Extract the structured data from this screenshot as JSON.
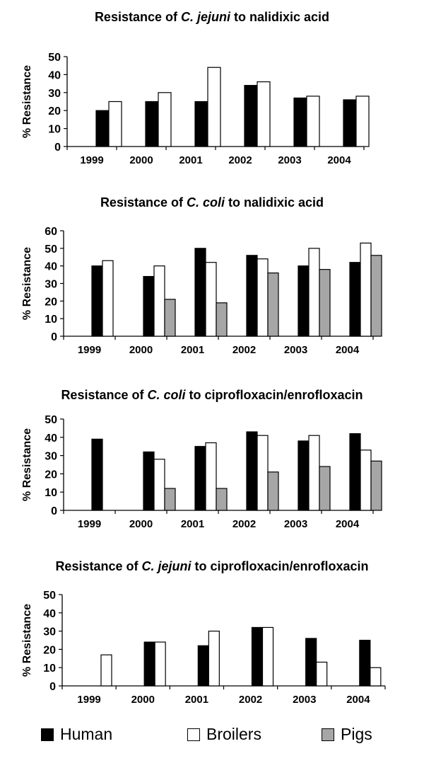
{
  "legend": [
    {
      "label": "Human",
      "color": "#000000"
    },
    {
      "label": "Broilers",
      "color": "#ffffff"
    },
    {
      "label": "Pigs",
      "color": "#a6a6a6"
    }
  ],
  "chart_data": [
    {
      "type": "bar",
      "title_before": "Resistance of ",
      "title_species": "C. jejuni",
      "title_after": " to nalidixic acid",
      "ylabel": "% Resistance",
      "ylim": [
        0,
        50
      ],
      "yticks": [
        0,
        10,
        20,
        30,
        40,
        50
      ],
      "categories": [
        "1999",
        "2000",
        "2001",
        "2002",
        "2003",
        "2004"
      ],
      "series": [
        {
          "name": "Human",
          "values": [
            20,
            25,
            25,
            34,
            27,
            26
          ]
        },
        {
          "name": "Broilers",
          "values": [
            25,
            30,
            44,
            36,
            28,
            28
          ]
        },
        {
          "name": "Pigs",
          "values": [
            null,
            null,
            null,
            null,
            null,
            null
          ]
        }
      ]
    },
    {
      "type": "bar",
      "title_before": "Resistance of ",
      "title_species": "C. coli",
      "title_after": " to nalidixic acid",
      "ylabel": "% Resistance",
      "ylim": [
        0,
        60
      ],
      "yticks": [
        0,
        10,
        20,
        30,
        40,
        50,
        60
      ],
      "categories": [
        "1999",
        "2000",
        "2001",
        "2002",
        "2003",
        "2004"
      ],
      "series": [
        {
          "name": "Human",
          "values": [
            40,
            34,
            50,
            46,
            40,
            42
          ]
        },
        {
          "name": "Broilers",
          "values": [
            43,
            40,
            42,
            44,
            50,
            53
          ]
        },
        {
          "name": "Pigs",
          "values": [
            null,
            21,
            19,
            36,
            38,
            46
          ]
        }
      ]
    },
    {
      "type": "bar",
      "title_before": "Resistance of ",
      "title_species": "C. coli",
      "title_after": " to ciprofloxacin/enrofloxacin",
      "ylabel": "% Resistance",
      "ylim": [
        0,
        50
      ],
      "yticks": [
        0,
        10,
        20,
        30,
        40,
        50
      ],
      "categories": [
        "1999",
        "2000",
        "2001",
        "2002",
        "2003",
        "2004"
      ],
      "series": [
        {
          "name": "Human",
          "values": [
            39,
            32,
            35,
            43,
            38,
            42
          ]
        },
        {
          "name": "Broilers",
          "values": [
            null,
            28,
            37,
            41,
            41,
            33
          ]
        },
        {
          "name": "Pigs",
          "values": [
            null,
            12,
            12,
            21,
            24,
            27
          ]
        }
      ]
    },
    {
      "type": "bar",
      "title_before": "Resistance of ",
      "title_species": "C. jejuni",
      "title_after": " to ciprofloxacin/enrofloxacin",
      "ylabel": "% Resistance",
      "ylim": [
        0,
        50
      ],
      "yticks": [
        0,
        10,
        20,
        30,
        40,
        50
      ],
      "categories": [
        "1999",
        "2000",
        "2001",
        "2002",
        "2003",
        "2004"
      ],
      "series": [
        {
          "name": "Human",
          "values": [
            null,
            24,
            22,
            32,
            26,
            25
          ]
        },
        {
          "name": "Broilers",
          "values": [
            17,
            24,
            30,
            32,
            13,
            10
          ]
        },
        {
          "name": "Pigs",
          "values": [
            null,
            null,
            null,
            null,
            null,
            null
          ]
        }
      ]
    }
  ]
}
